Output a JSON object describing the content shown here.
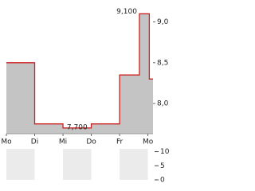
{
  "chart_data": [
    {
      "type": "area-line",
      "color": "#cc2222",
      "fill": "#c4c4c4",
      "x": [
        0,
        1,
        1,
        2,
        2,
        3,
        3,
        4,
        4,
        4.7,
        4.7,
        5.05,
        5.05,
        5.18
      ],
      "values": [
        8.5,
        8.5,
        7.75,
        7.75,
        7.7,
        7.7,
        7.75,
        7.75,
        8.35,
        8.35,
        9.1,
        9.1,
        8.3,
        8.3
      ],
      "xlim": [
        0,
        5.18
      ],
      "xticks": [
        {
          "value": 0,
          "label": "Mo"
        },
        {
          "value": 1,
          "label": "Di"
        },
        {
          "value": 2,
          "label": "Mi"
        },
        {
          "value": 3,
          "label": "Do"
        },
        {
          "value": 4,
          "label": "Fr"
        },
        {
          "value": 5,
          "label": "Mo"
        }
      ],
      "ylim": [
        7.63,
        9.22
      ],
      "yticks": [
        {
          "value": 8.0,
          "label": "8,0"
        },
        {
          "value": 8.5,
          "label": "8,5"
        },
        {
          "value": 9.0,
          "label": "9,0"
        }
      ],
      "annotations": [
        {
          "text": "9,100",
          "x": 4.7,
          "y": 9.1
        },
        {
          "text": "7,700",
          "x": 2.5,
          "y": 7.7
        }
      ]
    },
    {
      "type": "volume",
      "ylim": [
        0,
        11
      ],
      "yticks": [
        0,
        5,
        10
      ]
    }
  ]
}
